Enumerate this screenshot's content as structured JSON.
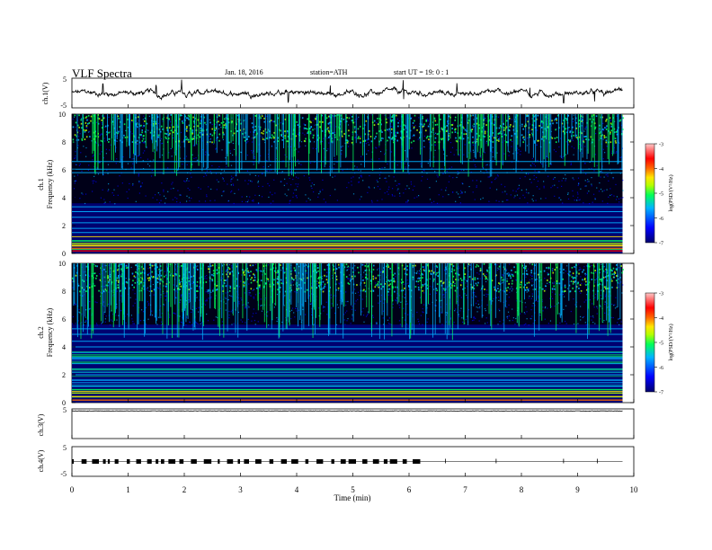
{
  "header": {
    "title": "VLF  Spectra",
    "date": "Jan. 18, 2016",
    "station": "station=ATH",
    "start": "start  UT  =    19: 0   : 1"
  },
  "chart_data": [
    {
      "type": "line",
      "name": "ch1-waveform",
      "ylabel": "ch.1(V)",
      "ylim": [
        -5,
        5
      ],
      "yticks": [
        "5",
        "-5"
      ],
      "xlim": [
        0,
        10
      ],
      "baseline": 0,
      "spike_times": [
        0.55,
        1.5,
        1.95,
        3.85,
        4.6,
        5.9,
        6.85,
        8.15,
        8.75,
        9.3
      ]
    },
    {
      "type": "heatmap",
      "name": "ch1-spectrogram",
      "ylabel_top": "ch.1",
      "ylabel": "Frequency  (kHz)",
      "ylim": [
        0,
        10
      ],
      "yticks": [
        "0",
        "2",
        "4",
        "6",
        "8",
        "10"
      ],
      "xlim": [
        0,
        9.8
      ],
      "lines_khz": [
        0.3,
        0.6,
        0.9,
        1.2,
        1.5,
        1.8,
        2.2,
        2.6,
        3.0,
        3.35,
        5.8,
        6.05,
        6.6
      ],
      "colorbar": {
        "label": "log(PSD/(V²/Hz)",
        "range": [
          -7,
          -3
        ],
        "ticks": [
          "-3",
          "-4",
          "-5",
          "-6",
          "-7"
        ]
      }
    },
    {
      "type": "heatmap",
      "name": "ch2-spectrogram",
      "ylabel_top": "ch.2",
      "ylabel": "Frequency  (kHz)",
      "ylim": [
        0,
        10
      ],
      "yticks": [
        "0",
        "2",
        "4",
        "6",
        "8",
        "10"
      ],
      "xlim": [
        0,
        9.8
      ],
      "lines_khz": [
        0.4,
        0.8,
        1.2,
        1.6,
        2.0,
        2.4,
        2.8,
        3.2,
        3.6,
        4.0,
        4.4,
        4.9,
        5.3
      ],
      "colorbar": {
        "label": "log(PSD/(V²/Hz)",
        "range": [
          -7,
          -3
        ],
        "ticks": [
          "-3",
          "-4",
          "-5",
          "-6",
          "-7"
        ]
      }
    },
    {
      "type": "line",
      "name": "ch3-waveform",
      "ylabel": "ch.3(V)",
      "ylim": [
        -5,
        5
      ],
      "yticks": [
        "5"
      ],
      "xlim": [
        0,
        10
      ],
      "baseline": 4.3
    },
    {
      "type": "line",
      "name": "ch4-waveform",
      "ylabel": "ch.4(V)",
      "ylim": [
        -5,
        5
      ],
      "yticks": [
        "5",
        "-5"
      ],
      "xlim": [
        0,
        10
      ],
      "baseline": 0,
      "pulse_until": 6.2
    }
  ],
  "xaxis": {
    "label": "Time  (min)",
    "ticks": [
      "0",
      "1",
      "2",
      "3",
      "4",
      "5",
      "6",
      "7",
      "8",
      "9",
      "10"
    ]
  },
  "colors": {
    "colormap": [
      "#00006e",
      "#0000ff",
      "#00b4ff",
      "#00ff5a",
      "#b4ff00",
      "#ffe600",
      "#ff6a00",
      "#ff0000",
      "#ffc8c8"
    ],
    "axis": "#000000"
  }
}
